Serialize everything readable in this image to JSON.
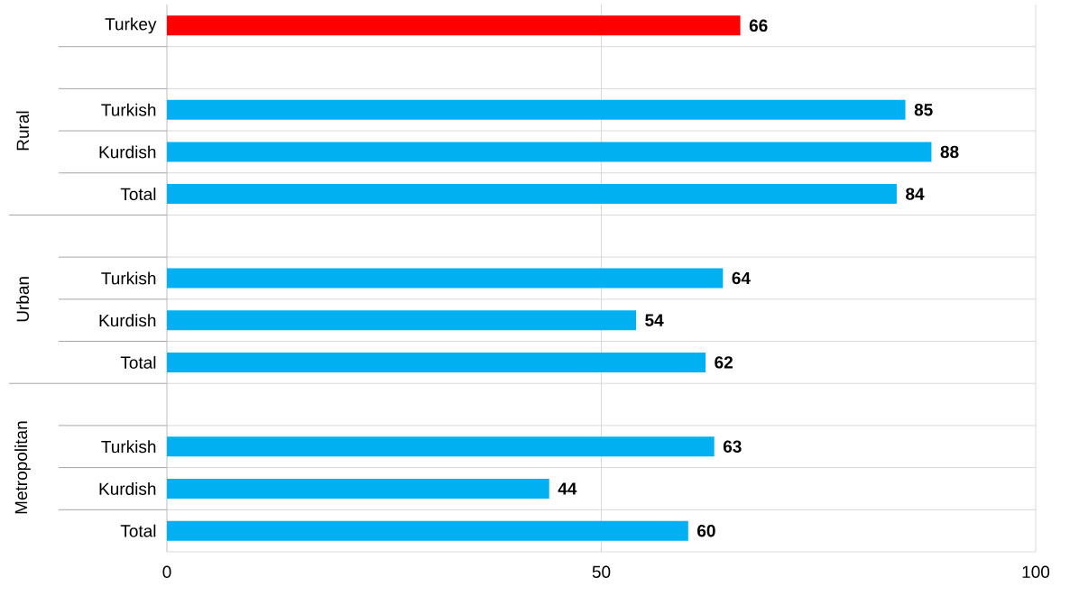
{
  "chart_data": {
    "type": "bar",
    "orientation": "horizontal",
    "categories": [
      "Turkey",
      null,
      "Turkish",
      "Kurdish",
      "Total",
      null,
      "Turkish",
      "Kurdish",
      "Total",
      null,
      "Turkish",
      "Kurdish",
      "Total"
    ],
    "values": [
      66,
      null,
      85,
      88,
      84,
      null,
      64,
      54,
      62,
      null,
      63,
      44,
      60
    ],
    "colors": [
      "#ff0000",
      "#00b0f0",
      "#00b0f0",
      "#00b0f0",
      "#00b0f0",
      "#00b0f0",
      "#00b0f0",
      "#00b0f0",
      "#00b0f0",
      "#00b0f0",
      "#00b0f0",
      "#00b0f0",
      "#00b0f0"
    ],
    "xlim": [
      0,
      100
    ],
    "xticks": [
      0,
      50,
      100
    ],
    "grid": true,
    "data_labels": true,
    "annotations": [
      "Rural",
      "Urban",
      "Metropolitan"
    ]
  }
}
